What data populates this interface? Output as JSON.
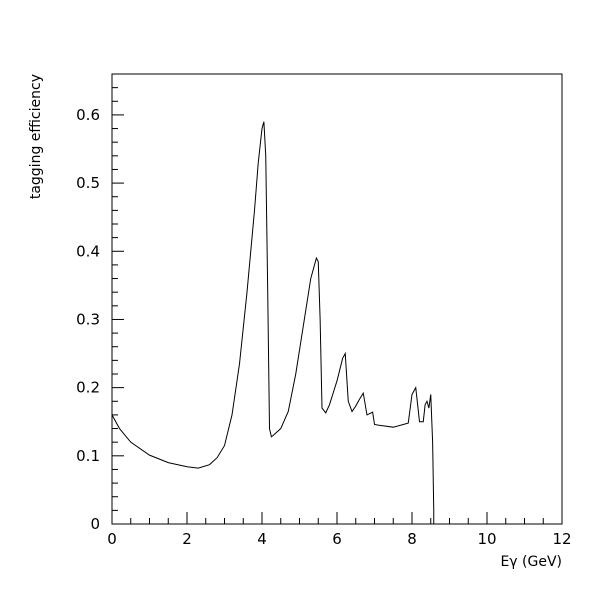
{
  "chart_data": {
    "type": "line",
    "title": "",
    "xlabel": "Eγ (GeV)",
    "ylabel": "tagging efficiency",
    "xlim": [
      0,
      12
    ],
    "ylim": [
      0,
      0.66
    ],
    "x_ticks": [
      "0",
      "2",
      "4",
      "6",
      "8",
      "10",
      "12"
    ],
    "y_ticks": [
      "0",
      "0.1",
      "0.2",
      "0.3",
      "0.4",
      "0.5",
      "0.6"
    ],
    "grid": false,
    "line_color": "#000000",
    "series": [
      {
        "x": [
          0.0,
          0.2,
          0.5,
          1.0,
          1.5,
          2.0,
          2.3,
          2.6,
          2.8,
          3.0,
          3.2,
          3.4,
          3.6,
          3.8,
          3.9,
          4.0,
          4.05,
          4.1,
          4.15,
          4.2,
          4.25,
          4.3,
          4.5,
          4.7,
          4.9,
          5.1,
          5.3,
          5.45,
          5.5,
          5.55,
          5.6,
          5.7,
          5.8,
          6.0,
          6.15,
          6.22,
          6.3,
          6.4,
          6.5,
          6.6,
          6.7,
          6.8,
          6.95,
          7.0,
          7.1,
          7.5,
          7.9,
          8.0,
          8.1,
          8.2,
          8.3,
          8.35,
          8.4,
          8.45,
          8.5,
          8.55,
          8.58,
          8.58
        ],
        "y": [
          0.16,
          0.14,
          0.12,
          0.101,
          0.09,
          0.084,
          0.082,
          0.087,
          0.097,
          0.115,
          0.16,
          0.235,
          0.34,
          0.46,
          0.53,
          0.58,
          0.59,
          0.54,
          0.35,
          0.14,
          0.128,
          0.13,
          0.14,
          0.165,
          0.22,
          0.29,
          0.36,
          0.39,
          0.385,
          0.3,
          0.17,
          0.163,
          0.175,
          0.21,
          0.243,
          0.25,
          0.18,
          0.165,
          0.173,
          0.183,
          0.192,
          0.16,
          0.164,
          0.146,
          0.145,
          0.142,
          0.148,
          0.19,
          0.2,
          0.15,
          0.15,
          0.175,
          0.18,
          0.17,
          0.19,
          0.12,
          0.02,
          0.0
        ]
      }
    ]
  }
}
